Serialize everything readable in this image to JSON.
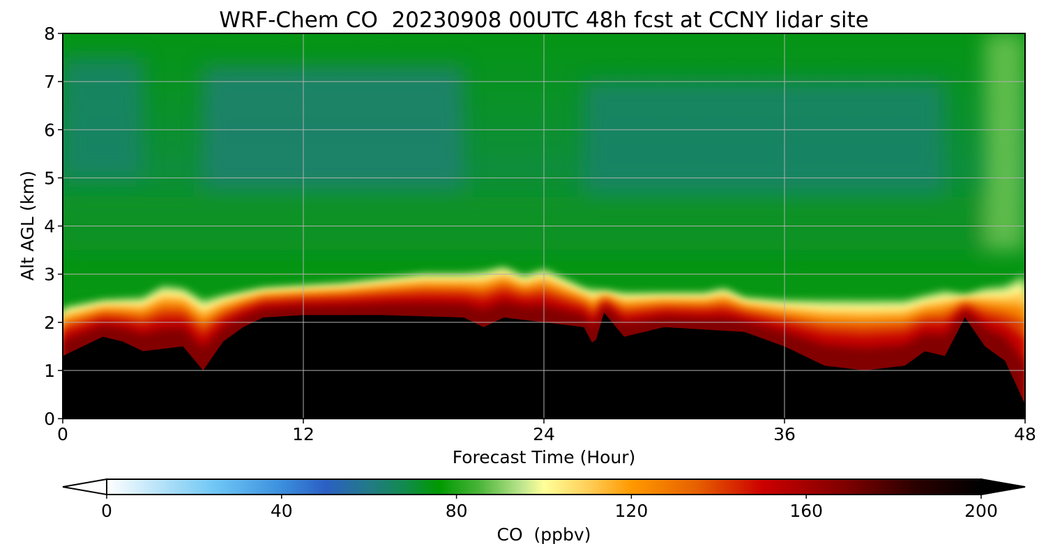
{
  "chart_data": {
    "type": "heatmap",
    "title": "WRF-Chem CO  20230908 00UTC 48h fcst at CCNY lidar site",
    "xlabel": "Forecast Time (Hour)",
    "ylabel": "Alt AGL (km)",
    "xlim": [
      0,
      48
    ],
    "ylim": [
      0,
      8
    ],
    "x_ticks": [
      "0",
      "12",
      "24",
      "36",
      "48"
    ],
    "y_ticks": [
      "0",
      "1",
      "2",
      "3",
      "4",
      "5",
      "6",
      "7",
      "8"
    ],
    "grid": true,
    "colorbar": {
      "label": "CO  (ppbv)",
      "range": [
        0,
        200
      ],
      "ticks": [
        "0",
        "40",
        "80",
        "120",
        "160",
        "200"
      ],
      "extend": "both",
      "colors": [
        {
          "value": 0,
          "color": "#ffffff"
        },
        {
          "value": 15,
          "color": "#a6dcf7"
        },
        {
          "value": 25,
          "color": "#6ec6f5"
        },
        {
          "value": 40,
          "color": "#3b8fdd"
        },
        {
          "value": 50,
          "color": "#2b5fc4"
        },
        {
          "value": 60,
          "color": "#227a86"
        },
        {
          "value": 68,
          "color": "#128a4e"
        },
        {
          "value": 76,
          "color": "#009900"
        },
        {
          "value": 85,
          "color": "#48b438"
        },
        {
          "value": 95,
          "color": "#bfe68f"
        },
        {
          "value": 100,
          "color": "#ffff99"
        },
        {
          "value": 110,
          "color": "#ffcf5a"
        },
        {
          "value": 120,
          "color": "#ff9900"
        },
        {
          "value": 135,
          "color": "#e66000"
        },
        {
          "value": 150,
          "color": "#cc0000"
        },
        {
          "value": 170,
          "color": "#7a0000"
        },
        {
          "value": 185,
          "color": "#2a0000"
        },
        {
          "value": 200,
          "color": "#000000"
        }
      ]
    },
    "boundary_layer_top_km": {
      "x": [
        0,
        2,
        4,
        5,
        6,
        7,
        8,
        10,
        12,
        14,
        16,
        18,
        20,
        21,
        22,
        23,
        24,
        25,
        26,
        27,
        28,
        30,
        32,
        33,
        34,
        36,
        38,
        40,
        42,
        44,
        45,
        46,
        47,
        48
      ],
      "y": [
        2.3,
        2.45,
        2.5,
        2.75,
        2.7,
        2.45,
        2.55,
        2.7,
        2.75,
        2.8,
        2.9,
        3.0,
        3.0,
        3.05,
        3.15,
        2.95,
        3.1,
        2.9,
        2.7,
        2.65,
        2.6,
        2.6,
        2.6,
        2.7,
        2.5,
        2.45,
        2.45,
        2.45,
        2.45,
        2.65,
        2.55,
        2.7,
        2.75,
        3.0
      ]
    },
    "high_co_layer_top_km": {
      "x": [
        0,
        2,
        3,
        4,
        6,
        7,
        8,
        9,
        10,
        12,
        16,
        20,
        21,
        22,
        24,
        26,
        26.5,
        27,
        28,
        30,
        34,
        36,
        38,
        40,
        42,
        43,
        44,
        45,
        46,
        47,
        48
      ],
      "y": [
        1.3,
        1.7,
        1.6,
        1.4,
        1.5,
        1.0,
        1.6,
        1.9,
        2.1,
        2.15,
        2.15,
        2.1,
        1.9,
        2.1,
        2.0,
        1.9,
        1.5,
        2.2,
        1.7,
        1.9,
        1.8,
        1.5,
        1.1,
        1.0,
        1.1,
        1.4,
        1.3,
        2.1,
        1.5,
        1.2,
        0.3
      ]
    },
    "free_troposphere": [
      {
        "x0": 0,
        "x1": 4,
        "y0": 5.0,
        "y1": 7.5,
        "value": 64
      },
      {
        "x0": 7,
        "x1": 20,
        "y0": 4.8,
        "y1": 7.3,
        "value": 63
      },
      {
        "x0": 26,
        "x1": 44,
        "y0": 4.7,
        "y1": 7.0,
        "value": 64
      },
      {
        "x0": 0,
        "x1": 48,
        "y0": 3.5,
        "y1": 4.6,
        "value": 72
      },
      {
        "x0": 46,
        "x1": 48,
        "y0": 3.5,
        "y1": 8.0,
        "value": 88
      }
    ]
  }
}
